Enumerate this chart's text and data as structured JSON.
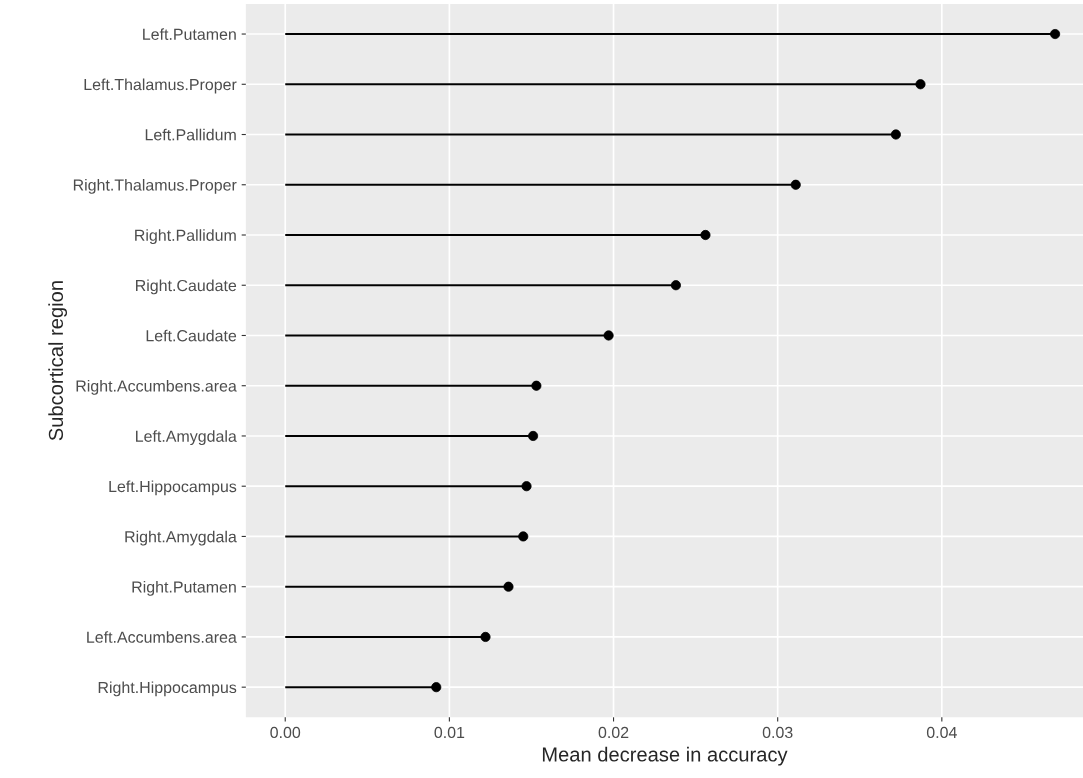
{
  "chart_data": {
    "type": "lollipop",
    "orientation": "horizontal",
    "xlabel": "Mean decrease in accuracy",
    "ylabel": "Subcortical region",
    "categories": [
      "Left.Putamen",
      "Left.Thalamus.Proper",
      "Left.Pallidum",
      "Right.Thalamus.Proper",
      "Right.Pallidum",
      "Right.Caudate",
      "Left.Caudate",
      "Right.Accumbens.area",
      "Left.Amygdala",
      "Left.Hippocampus",
      "Right.Amygdala",
      "Right.Putamen",
      "Left.Accumbens.area",
      "Right.Hippocampus"
    ],
    "values": [
      0.0469,
      0.0387,
      0.0372,
      0.0311,
      0.0256,
      0.0238,
      0.0197,
      0.0153,
      0.0151,
      0.0147,
      0.0145,
      0.0136,
      0.0122,
      0.0092
    ],
    "color": "#000000",
    "marker": "circle",
    "grid": true,
    "xlim": [
      -0.0024,
      0.0486
    ],
    "xticks": [
      {
        "value": 0,
        "label": "0.00"
      },
      {
        "value": 0.01,
        "label": "0.01"
      },
      {
        "value": 0.02,
        "label": "0.02"
      },
      {
        "value": 0.03,
        "label": "0.03"
      },
      {
        "value": 0.04,
        "label": "0.04"
      }
    ]
  }
}
